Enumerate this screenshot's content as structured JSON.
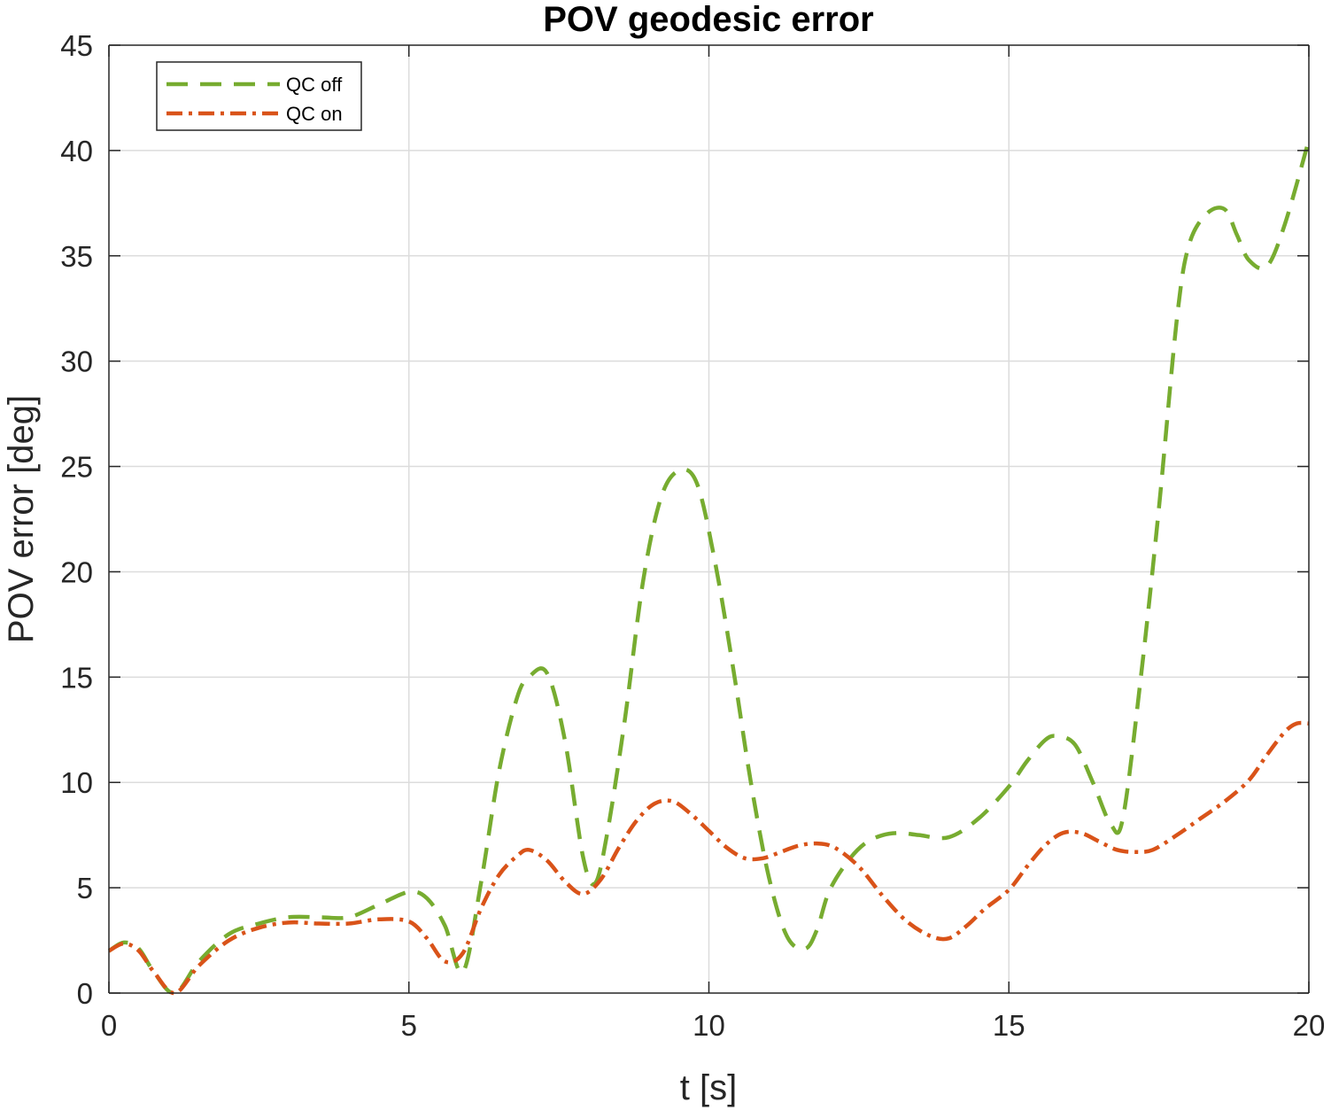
{
  "chart_data": {
    "type": "line",
    "title": "POV geodesic error",
    "xlabel": "t [s]",
    "ylabel": "POV error [deg]",
    "xlim": [
      0,
      20
    ],
    "ylim": [
      0,
      45
    ],
    "xticks": [
      0,
      5,
      10,
      15,
      20
    ],
    "yticks": [
      0,
      5,
      10,
      15,
      20,
      25,
      30,
      35,
      40,
      45
    ],
    "grid": true,
    "legend_position": "top-left",
    "series": [
      {
        "name": "QC off",
        "color": "#77AC30",
        "style": "dashed",
        "x": [
          0,
          0.25,
          0.5,
          0.75,
          1.1,
          1.5,
          2.0,
          2.5,
          3.0,
          3.5,
          4.0,
          4.5,
          5.0,
          5.3,
          5.6,
          5.9,
          6.2,
          6.5,
          6.8,
          7.0,
          7.3,
          7.6,
          7.9,
          8.1,
          8.3,
          8.6,
          8.9,
          9.2,
          9.5,
          9.8,
          10.1,
          10.4,
          10.7,
          11.0,
          11.3,
          11.6,
          11.8,
          12.0,
          12.3,
          12.6,
          12.9,
          13.2,
          13.5,
          14.0,
          14.5,
          15.0,
          15.3,
          15.6,
          15.8,
          16.1,
          16.4,
          16.7,
          16.9,
          17.2,
          17.5,
          17.8,
          18.0,
          18.3,
          18.6,
          18.8,
          19.0,
          19.3,
          19.6,
          20.0
        ],
        "values": [
          2.0,
          2.4,
          2.1,
          1.0,
          0.0,
          1.5,
          2.8,
          3.3,
          3.6,
          3.6,
          3.6,
          4.2,
          4.8,
          4.5,
          3.2,
          1.0,
          5.2,
          10.5,
          14.0,
          15.0,
          15.2,
          12.0,
          6.5,
          5.2,
          7.5,
          13.0,
          19.5,
          23.5,
          24.8,
          24.2,
          20.5,
          15.5,
          10.0,
          5.5,
          2.7,
          2.1,
          3.0,
          4.8,
          6.2,
          7.1,
          7.5,
          7.6,
          7.5,
          7.4,
          8.3,
          9.8,
          11.0,
          12.0,
          12.2,
          11.8,
          10.0,
          8.0,
          8.3,
          15.0,
          23.0,
          32.0,
          35.5,
          37.0,
          37.2,
          36.0,
          34.8,
          34.5,
          36.5,
          40.5
        ]
      },
      {
        "name": "QC on",
        "color": "#D95319",
        "style": "dash-dot",
        "x": [
          0,
          0.25,
          0.5,
          0.75,
          1.1,
          1.5,
          2.0,
          2.5,
          3.0,
          3.5,
          4.0,
          4.5,
          5.0,
          5.3,
          5.6,
          5.9,
          6.2,
          6.5,
          6.8,
          7.0,
          7.3,
          7.6,
          7.9,
          8.2,
          8.5,
          8.8,
          9.1,
          9.4,
          9.7,
          10.0,
          10.3,
          10.6,
          10.9,
          11.2,
          11.5,
          11.8,
          12.1,
          12.5,
          12.9,
          13.3,
          13.7,
          14.0,
          14.3,
          14.6,
          15.0,
          15.3,
          15.6,
          15.9,
          16.2,
          16.5,
          16.8,
          17.1,
          17.4,
          17.8,
          18.2,
          18.6,
          19.0,
          19.3,
          19.6,
          19.8,
          20.0
        ],
        "values": [
          2.0,
          2.35,
          2.0,
          1.0,
          0.0,
          1.3,
          2.5,
          3.1,
          3.35,
          3.3,
          3.3,
          3.5,
          3.4,
          2.6,
          1.5,
          1.9,
          4.0,
          5.6,
          6.5,
          6.8,
          6.3,
          5.3,
          4.7,
          5.4,
          6.9,
          8.2,
          9.0,
          9.1,
          8.5,
          7.7,
          6.9,
          6.4,
          6.4,
          6.7,
          7.0,
          7.1,
          6.9,
          6.0,
          4.6,
          3.4,
          2.7,
          2.6,
          3.2,
          4.0,
          4.9,
          6.0,
          7.0,
          7.6,
          7.6,
          7.2,
          6.8,
          6.7,
          6.8,
          7.5,
          8.3,
          9.1,
          10.1,
          11.3,
          12.4,
          12.8,
          12.8
        ]
      }
    ]
  }
}
